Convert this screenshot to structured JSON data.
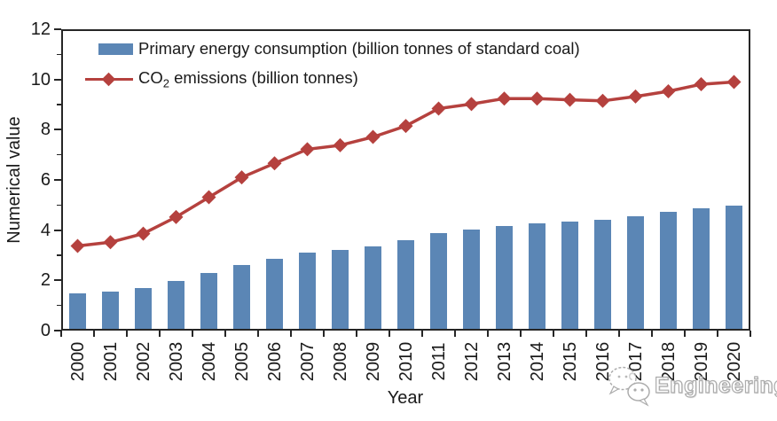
{
  "figure_role": "static-chart-image",
  "colors": {
    "bar": "#5b86b5",
    "line": "#b5413e",
    "axis": "#262626",
    "text": "#1a1a1a",
    "watermark_outline": "#a8a8a8"
  },
  "legend": {
    "bar_label": "Primary energy consumption (billion tonnes of standard coal)",
    "line_label_prefix": "CO",
    "line_label_sub": "2",
    "line_label_suffix": " emissions (billion tonnes)"
  },
  "axes": {
    "ylabel": "Numerical value",
    "xlabel": "Year",
    "ytick_labels": [
      "0",
      "2",
      "4",
      "6",
      "8",
      "10",
      "12"
    ]
  },
  "watermark": {
    "text": "Engineering",
    "logo": "wechat-logo-icon"
  },
  "chart_data": {
    "type": "bar",
    "subtype": "bar+line-combo",
    "title": "",
    "xlabel": "Year",
    "ylabel": "Numerical value",
    "ylim": [
      0,
      12
    ],
    "ytick_step": 2,
    "grid": false,
    "legend_position": "upper-left-inside",
    "categories": [
      "2000",
      "2001",
      "2002",
      "2003",
      "2004",
      "2005",
      "2006",
      "2007",
      "2008",
      "2009",
      "2010",
      "2011",
      "2012",
      "2013",
      "2014",
      "2015",
      "2016",
      "2017",
      "2018",
      "2019",
      "2020"
    ],
    "series": [
      {
        "name": "Primary energy consumption (billion tonnes of standard coal)",
        "type": "bar",
        "color": "#5b86b5",
        "values": [
          1.47,
          1.55,
          1.7,
          1.97,
          2.3,
          2.61,
          2.87,
          3.11,
          3.21,
          3.36,
          3.61,
          3.87,
          4.02,
          4.17,
          4.28,
          4.34,
          4.41,
          4.56,
          4.72,
          4.87,
          4.98
        ]
      },
      {
        "name": "CO2 emissions (billion tonnes)",
        "type": "line",
        "marker": "diamond",
        "color": "#b5413e",
        "values": [
          3.37,
          3.52,
          3.86,
          4.52,
          5.31,
          6.1,
          6.66,
          7.22,
          7.38,
          7.71,
          8.15,
          8.84,
          9.02,
          9.24,
          9.24,
          9.19,
          9.15,
          9.32,
          9.53,
          9.81,
          9.9
        ]
      }
    ]
  }
}
